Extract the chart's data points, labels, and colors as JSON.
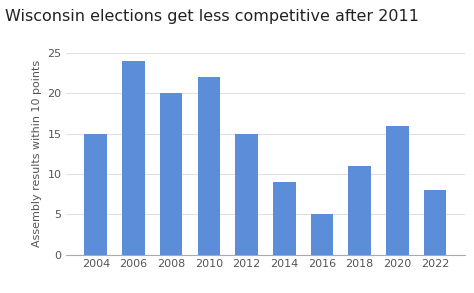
{
  "title": "Wisconsin elections get less competitive after 2011",
  "xlabel": "",
  "ylabel": "Assembly results within 10 points",
  "categories": [
    "2004",
    "2006",
    "2008",
    "2010",
    "2012",
    "2014",
    "2016",
    "2018",
    "2020",
    "2022"
  ],
  "values": [
    15,
    24,
    20,
    22,
    15,
    9,
    5,
    11,
    16,
    8
  ],
  "bar_color": "#5b8dd9",
  "background_color": "#ffffff",
  "ylim": [
    0,
    25
  ],
  "yticks": [
    0,
    5,
    10,
    15,
    20,
    25
  ],
  "title_fontsize": 11.5,
  "ylabel_fontsize": 8,
  "tick_fontsize": 8,
  "grid_color": "#e0e0e0",
  "bar_width": 0.6
}
